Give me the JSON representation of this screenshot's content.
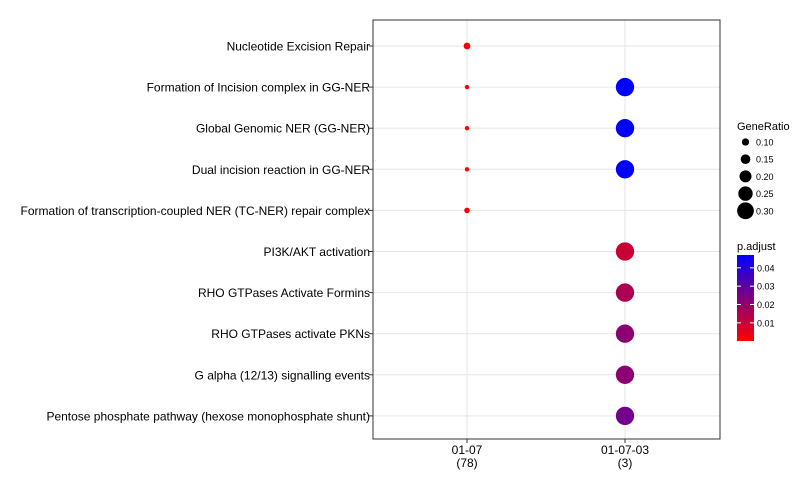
{
  "chart_data": {
    "type": "scatter",
    "x_categories": [
      {
        "label": "01-07",
        "count": "(78)"
      },
      {
        "label": "01-07-03",
        "count": "(3)"
      }
    ],
    "y_categories": [
      "Nucleotide Excision Repair",
      "Formation of Incision complex in GG-NER",
      "Global Genomic NER (GG-NER)",
      "Dual incision reaction in GG-NER",
      "Formation of transcription-coupled NER (TC-NER) repair complex",
      "PI3K/AKT activation",
      "RHO GTPases Activate Formins",
      "RHO GTPases activate PKNs",
      "G alpha (12/13) signalling events",
      "Pentose phosphate pathway (hexose monophosphate shunt)"
    ],
    "points": [
      {
        "x": "01-07",
        "y": "Nucleotide Excision Repair",
        "gene_ratio": 0.09,
        "p_adjust": 0.0001
      },
      {
        "x": "01-07",
        "y": "Formation of Incision complex in GG-NER",
        "gene_ratio": 0.04,
        "p_adjust": 0.0001
      },
      {
        "x": "01-07",
        "y": "Global Genomic NER (GG-NER)",
        "gene_ratio": 0.04,
        "p_adjust": 0.0001
      },
      {
        "x": "01-07",
        "y": "Dual incision reaction in GG-NER",
        "gene_ratio": 0.04,
        "p_adjust": 0.0001
      },
      {
        "x": "01-07",
        "y": "Formation of transcription-coupled NER (TC-NER) repair complex",
        "gene_ratio": 0.065,
        "p_adjust": 0.0001
      },
      {
        "x": "01-07-03",
        "y": "Formation of Incision complex in GG-NER",
        "gene_ratio": 0.333,
        "p_adjust": 0.047
      },
      {
        "x": "01-07-03",
        "y": "Global Genomic NER (GG-NER)",
        "gene_ratio": 0.333,
        "p_adjust": 0.047
      },
      {
        "x": "01-07-03",
        "y": "Dual incision reaction in GG-NER",
        "gene_ratio": 0.333,
        "p_adjust": 0.047
      },
      {
        "x": "01-07-03",
        "y": "PI3K/AKT activation",
        "gene_ratio": 0.333,
        "p_adjust": 0.01
      },
      {
        "x": "01-07-03",
        "y": "RHO GTPases Activate Formins",
        "gene_ratio": 0.333,
        "p_adjust": 0.015
      },
      {
        "x": "01-07-03",
        "y": "RHO GTPases activate PKNs",
        "gene_ratio": 0.333,
        "p_adjust": 0.021
      },
      {
        "x": "01-07-03",
        "y": "G alpha (12/13) signalling events",
        "gene_ratio": 0.333,
        "p_adjust": 0.021
      },
      {
        "x": "01-07-03",
        "y": "Pentose phosphate pathway (hexose monophosphate shunt)",
        "gene_ratio": 0.333,
        "p_adjust": 0.026
      }
    ],
    "size_legend": {
      "title": "GeneRatio",
      "entries": [
        {
          "label": "0.10",
          "value": 0.1
        },
        {
          "label": "0.15",
          "value": 0.15
        },
        {
          "label": "0.20",
          "value": 0.2
        },
        {
          "label": "0.25",
          "value": 0.25
        },
        {
          "label": "0.30",
          "value": 0.3
        }
      ]
    },
    "color_legend": {
      "title": "p.adjust",
      "low_color": "#ff0000",
      "high_color": "#0000ff",
      "range": [
        0.0001,
        0.047
      ],
      "ticks": [
        {
          "label": "0.01",
          "value": 0.01
        },
        {
          "label": "0.02",
          "value": 0.02
        },
        {
          "label": "0.03",
          "value": 0.03
        },
        {
          "label": "0.04",
          "value": 0.04
        }
      ]
    },
    "grid": true
  }
}
